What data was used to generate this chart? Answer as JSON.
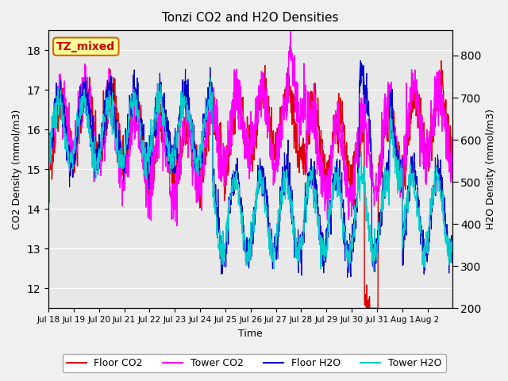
{
  "title": "Tonzi CO2 and H2O Densities",
  "xlabel": "Time",
  "ylabel_left": "CO2 Density (mmol/m3)",
  "ylabel_right": "H2O Density (mmol/m3)",
  "ylim_left": [
    11.5,
    18.5
  ],
  "ylim_right": [
    200,
    860
  ],
  "annotation_text": "TZ_mixed",
  "annotation_color": "#cc0000",
  "annotation_bg": "#ffff99",
  "annotation_border": "#cc6600",
  "colors": {
    "floor_co2": "#dd0000",
    "tower_co2": "#ff00ff",
    "floor_h2o": "#0000cc",
    "tower_h2o": "#00cccc"
  },
  "legend_labels": [
    "Floor CO2",
    "Tower CO2",
    "Floor H2O",
    "Tower H2O"
  ],
  "x_tick_labels": [
    "Jul 18",
    "Jul 19",
    "Jul 20",
    "Jul 21",
    "Jul 22",
    "Jul 23",
    "Jul 24",
    "Jul 25",
    "Jul 26",
    "Jul 27",
    "Jul 28",
    "Jul 29",
    "Jul 30",
    "Jul 31",
    "Aug 1",
    "Aug 2"
  ],
  "n_days": 16,
  "bg_color": "#e8e8e8",
  "grid_color": "#ffffff",
  "seed": 42
}
